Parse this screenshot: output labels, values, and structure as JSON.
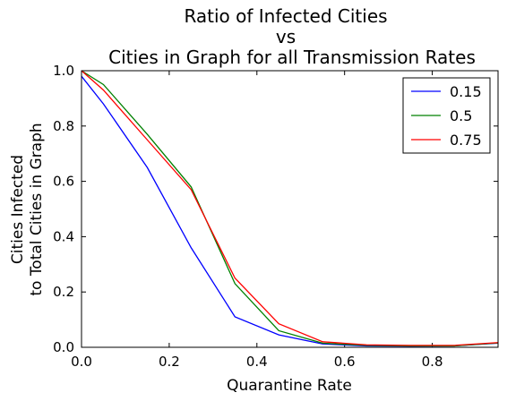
{
  "chart_data": {
    "type": "line",
    "title": [
      "Ratio of Infected Cities",
      "vs",
      "Cities in Graph for all Transmission Rates"
    ],
    "xlabel": "Quarantine Rate",
    "ylabel": [
      "Cities Infected",
      "to Total Cities in Graph"
    ],
    "xlim": [
      0.0,
      0.95
    ],
    "ylim": [
      0.0,
      1.0
    ],
    "xticks": [
      0.0,
      0.2,
      0.4,
      0.6,
      0.8
    ],
    "xtick_labels": [
      "0.0",
      "0.2",
      "0.4",
      "0.6",
      "0.8"
    ],
    "yticks": [
      0.0,
      0.2,
      0.4,
      0.6,
      0.8,
      1.0
    ],
    "ytick_labels": [
      "0.0",
      "0.2",
      "0.4",
      "0.6",
      "0.8",
      "1.0"
    ],
    "grid": false,
    "legend_position": "upper right",
    "x": [
      0.0,
      0.05,
      0.15,
      0.25,
      0.35,
      0.45,
      0.55,
      0.65,
      0.75,
      0.85,
      0.95
    ],
    "series": [
      {
        "name": "0.15",
        "color": "#0000ff",
        "values": [
          0.98,
          0.88,
          0.65,
          0.36,
          0.11,
          0.045,
          0.012,
          0.005,
          0.004,
          0.005,
          0.015
        ]
      },
      {
        "name": "0.5",
        "color": "#008000",
        "values": [
          1.0,
          0.95,
          0.77,
          0.58,
          0.23,
          0.06,
          0.015,
          0.007,
          0.005,
          0.005,
          0.016
        ]
      },
      {
        "name": "0.75",
        "color": "#ff0000",
        "values": [
          1.0,
          0.93,
          0.75,
          0.57,
          0.25,
          0.085,
          0.02,
          0.009,
          0.007,
          0.007,
          0.017
        ]
      }
    ]
  }
}
